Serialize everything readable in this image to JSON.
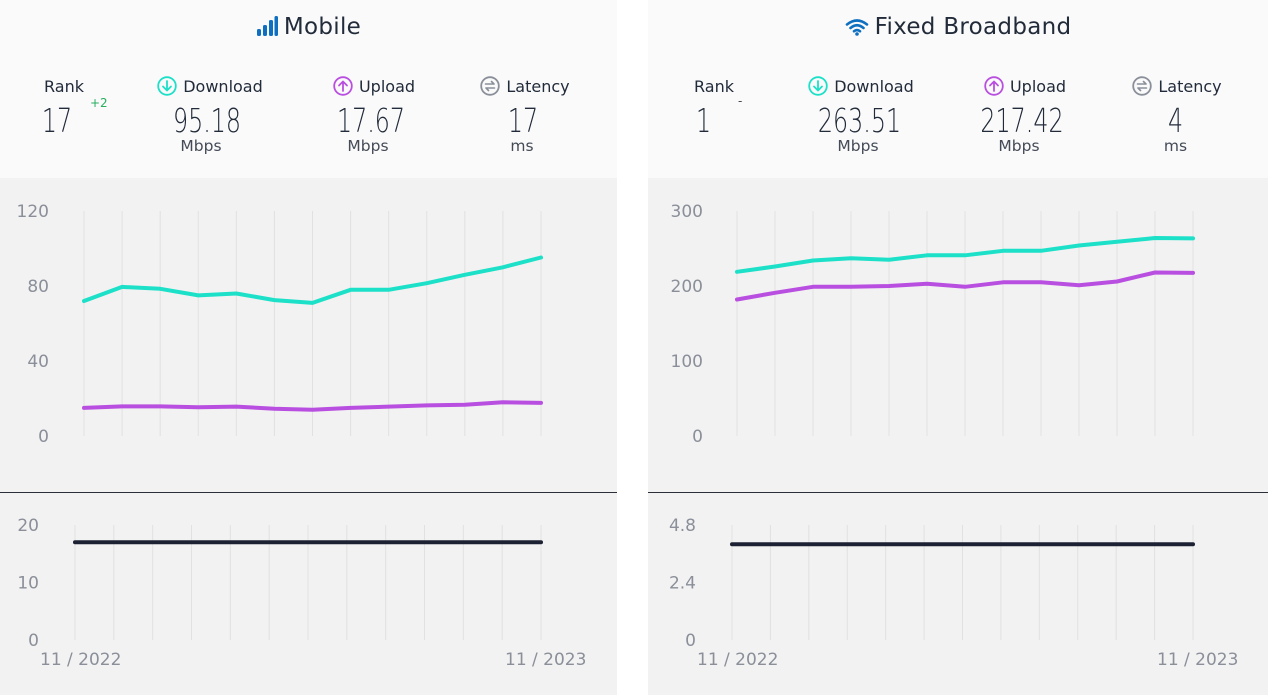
{
  "colors": {
    "download": "#1de0c8",
    "upload": "#b94fe0",
    "latency": "#1c2233",
    "gain": "#27ae60",
    "title_icon": "#0e6fc1"
  },
  "mobile": {
    "title": "Mobile",
    "title_icon": "signal-bars-icon",
    "rank": {
      "label": "Rank",
      "value": "17",
      "change": "+2"
    },
    "download": {
      "label": "Download",
      "value": "95.18",
      "unit": "Mbps",
      "icon": "download-arrow-icon"
    },
    "upload": {
      "label": "Upload",
      "value": "17.67",
      "unit": "Mbps",
      "icon": "upload-arrow-icon"
    },
    "latency": {
      "label": "Latency",
      "value": "17",
      "unit": "ms",
      "icon": "latency-icon"
    },
    "x_labels": [
      "11 / 2022",
      "11 / 2023"
    ]
  },
  "fixed": {
    "title": "Fixed Broadband",
    "title_icon": "wifi-icon",
    "rank": {
      "label": "Rank",
      "value": "1",
      "change": "-"
    },
    "download": {
      "label": "Download",
      "value": "263.51",
      "unit": "Mbps",
      "icon": "download-arrow-icon"
    },
    "upload": {
      "label": "Upload",
      "value": "217.42",
      "unit": "Mbps",
      "icon": "upload-arrow-icon"
    },
    "latency": {
      "label": "Latency",
      "value": "4",
      "unit": "ms",
      "icon": "latency-icon"
    },
    "x_labels": [
      "11 / 2022",
      "11 / 2023"
    ]
  },
  "chart_data": [
    {
      "type": "line",
      "x": [
        "11/2022",
        "12/2022",
        "01/2023",
        "02/2023",
        "03/2023",
        "04/2023",
        "05/2023",
        "06/2023",
        "07/2023",
        "08/2023",
        "09/2023",
        "10/2023",
        "11/2023"
      ],
      "series": [
        {
          "values": [
            72,
            79.5,
            78.5,
            75,
            76,
            72.5,
            71,
            78,
            78,
            81.5,
            86,
            90,
            95.18
          ]
        },
        {
          "values": [
            15,
            15.8,
            15.8,
            15.3,
            15.7,
            14.5,
            14,
            15,
            15.7,
            16.3,
            16.7,
            18,
            17.67
          ]
        }
      ],
      "ylim": [
        0,
        120
      ],
      "yticks": [
        0,
        40,
        80,
        120
      ],
      "grid": "vertical"
    },
    {
      "type": "line",
      "x": [
        "11/2022",
        "12/2022",
        "01/2023",
        "02/2023",
        "03/2023",
        "04/2023",
        "05/2023",
        "06/2023",
        "07/2023",
        "08/2023",
        "09/2023",
        "10/2023",
        "11/2023"
      ],
      "series": [
        {
          "values": [
            17,
            17,
            17,
            17,
            17,
            17,
            17,
            17,
            17,
            17,
            17,
            17,
            17
          ]
        }
      ],
      "ylim": [
        0,
        20
      ],
      "yticks": [
        0,
        10,
        20
      ],
      "grid": "vertical"
    },
    {
      "type": "line",
      "x": [
        "11/2022",
        "12/2022",
        "01/2023",
        "02/2023",
        "03/2023",
        "04/2023",
        "05/2023",
        "06/2023",
        "07/2023",
        "08/2023",
        "09/2023",
        "10/2023",
        "11/2023"
      ],
      "series": [
        {
          "values": [
            219,
            226,
            234,
            237,
            235,
            241,
            241,
            247,
            247,
            254,
            259,
            264,
            263.51
          ]
        },
        {
          "values": [
            182,
            191,
            199,
            199,
            200,
            203,
            199,
            205,
            205,
            201,
            206,
            218,
            217.42
          ]
        }
      ],
      "ylim": [
        0,
        300
      ],
      "yticks": [
        0,
        100,
        200,
        300
      ],
      "grid": "vertical"
    },
    {
      "type": "line",
      "x": [
        "11/2022",
        "12/2022",
        "01/2023",
        "02/2023",
        "03/2023",
        "04/2023",
        "05/2023",
        "06/2023",
        "07/2023",
        "08/2023",
        "09/2023",
        "10/2023",
        "11/2023"
      ],
      "series": [
        {
          "values": [
            4,
            4,
            4,
            4,
            4,
            4,
            4,
            4,
            4,
            4,
            4,
            4,
            4
          ]
        }
      ],
      "ylim": [
        0,
        4.8
      ],
      "yticks": [
        0,
        2.4,
        4.8
      ],
      "grid": "vertical"
    }
  ]
}
